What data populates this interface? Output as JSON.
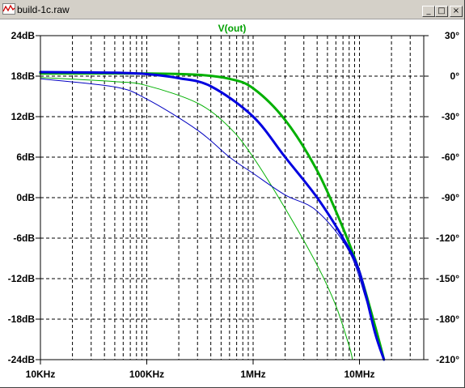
{
  "window": {
    "title": "build-1c.raw",
    "buttons": {
      "minimize": "_",
      "maximize": "□",
      "close": "×"
    }
  },
  "chart_data": {
    "type": "line",
    "title": "V(out)",
    "title_color": "#00a000",
    "x_scale": "log",
    "x_range": [
      10000,
      40000000
    ],
    "x_ticks": [
      {
        "value": 10000,
        "label": "10KHz"
      },
      {
        "value": 100000,
        "label": "100KHz"
      },
      {
        "value": 1000000,
        "label": "1MHz"
      },
      {
        "value": 10000000,
        "label": "10MHz"
      }
    ],
    "y_left": {
      "range": [
        -24,
        24
      ],
      "ticks": [
        {
          "value": 24,
          "label": "24dB"
        },
        {
          "value": 18,
          "label": "18dB"
        },
        {
          "value": 12,
          "label": "12dB"
        },
        {
          "value": 6,
          "label": "6dB"
        },
        {
          "value": 0,
          "label": "0dB"
        },
        {
          "value": -6,
          "label": "-6dB"
        },
        {
          "value": -12,
          "label": "-12dB"
        },
        {
          "value": -18,
          "label": "-18dB"
        },
        {
          "value": -24,
          "label": "-24dB"
        }
      ]
    },
    "y_right": {
      "range": [
        -210,
        30
      ],
      "ticks": [
        {
          "value": 30,
          "label": "30°"
        },
        {
          "value": 0,
          "label": "0°"
        },
        {
          "value": -30,
          "label": "-30°"
        },
        {
          "value": -60,
          "label": "-60°"
        },
        {
          "value": -90,
          "label": "-90°"
        },
        {
          "value": -120,
          "label": "-120°"
        },
        {
          "value": -150,
          "label": "-150°"
        },
        {
          "value": -180,
          "label": "-180°"
        },
        {
          "value": -210,
          "label": "-210°"
        }
      ]
    },
    "grid": true,
    "series": [
      {
        "kind": "magnitude",
        "axis": "left",
        "color": "#00b000",
        "width": 3,
        "points": [
          [
            10000,
            18.4
          ],
          [
            100000,
            18.4
          ],
          [
            300000,
            18.2
          ],
          [
            600000,
            17.6
          ],
          [
            1000000,
            16.2
          ],
          [
            2000000,
            11.5
          ],
          [
            4000000,
            4.0
          ],
          [
            7000000,
            -4.5
          ],
          [
            10000000,
            -11
          ],
          [
            14000000,
            -19
          ],
          [
            17000000,
            -24
          ]
        ]
      },
      {
        "kind": "magnitude",
        "axis": "left",
        "color": "#0000e0",
        "width": 3,
        "points": [
          [
            10000,
            18.6
          ],
          [
            50000,
            18.5
          ],
          [
            100000,
            18.3
          ],
          [
            200000,
            17.7
          ],
          [
            400000,
            16.5
          ],
          [
            1000000,
            12.0
          ],
          [
            2000000,
            6.0
          ],
          [
            4000000,
            0.0
          ],
          [
            7000000,
            -6.0
          ],
          [
            10000000,
            -11
          ],
          [
            14000000,
            -20
          ],
          [
            17000000,
            -24
          ]
        ]
      },
      {
        "kind": "phase",
        "axis": "right",
        "color": "#00b000",
        "width": 1,
        "points": [
          [
            10000,
            -1
          ],
          [
            50000,
            -4
          ],
          [
            100000,
            -7
          ],
          [
            300000,
            -20
          ],
          [
            600000,
            -38
          ],
          [
            1000000,
            -60
          ],
          [
            2000000,
            -98
          ],
          [
            4000000,
            -140
          ],
          [
            6000000,
            -170
          ],
          [
            8000000,
            -200
          ],
          [
            8600000,
            -210
          ]
        ]
      },
      {
        "kind": "phase",
        "axis": "right",
        "color": "#0000c0",
        "width": 1,
        "points": [
          [
            10000,
            -2
          ],
          [
            50000,
            -8
          ],
          [
            100000,
            -17
          ],
          [
            300000,
            -40
          ],
          [
            600000,
            -60
          ],
          [
            1000000,
            -72
          ],
          [
            2000000,
            -88
          ],
          [
            4000000,
            -100
          ],
          [
            8000000,
            -130
          ],
          [
            12000000,
            -170
          ],
          [
            17000000,
            -210
          ]
        ]
      }
    ]
  }
}
